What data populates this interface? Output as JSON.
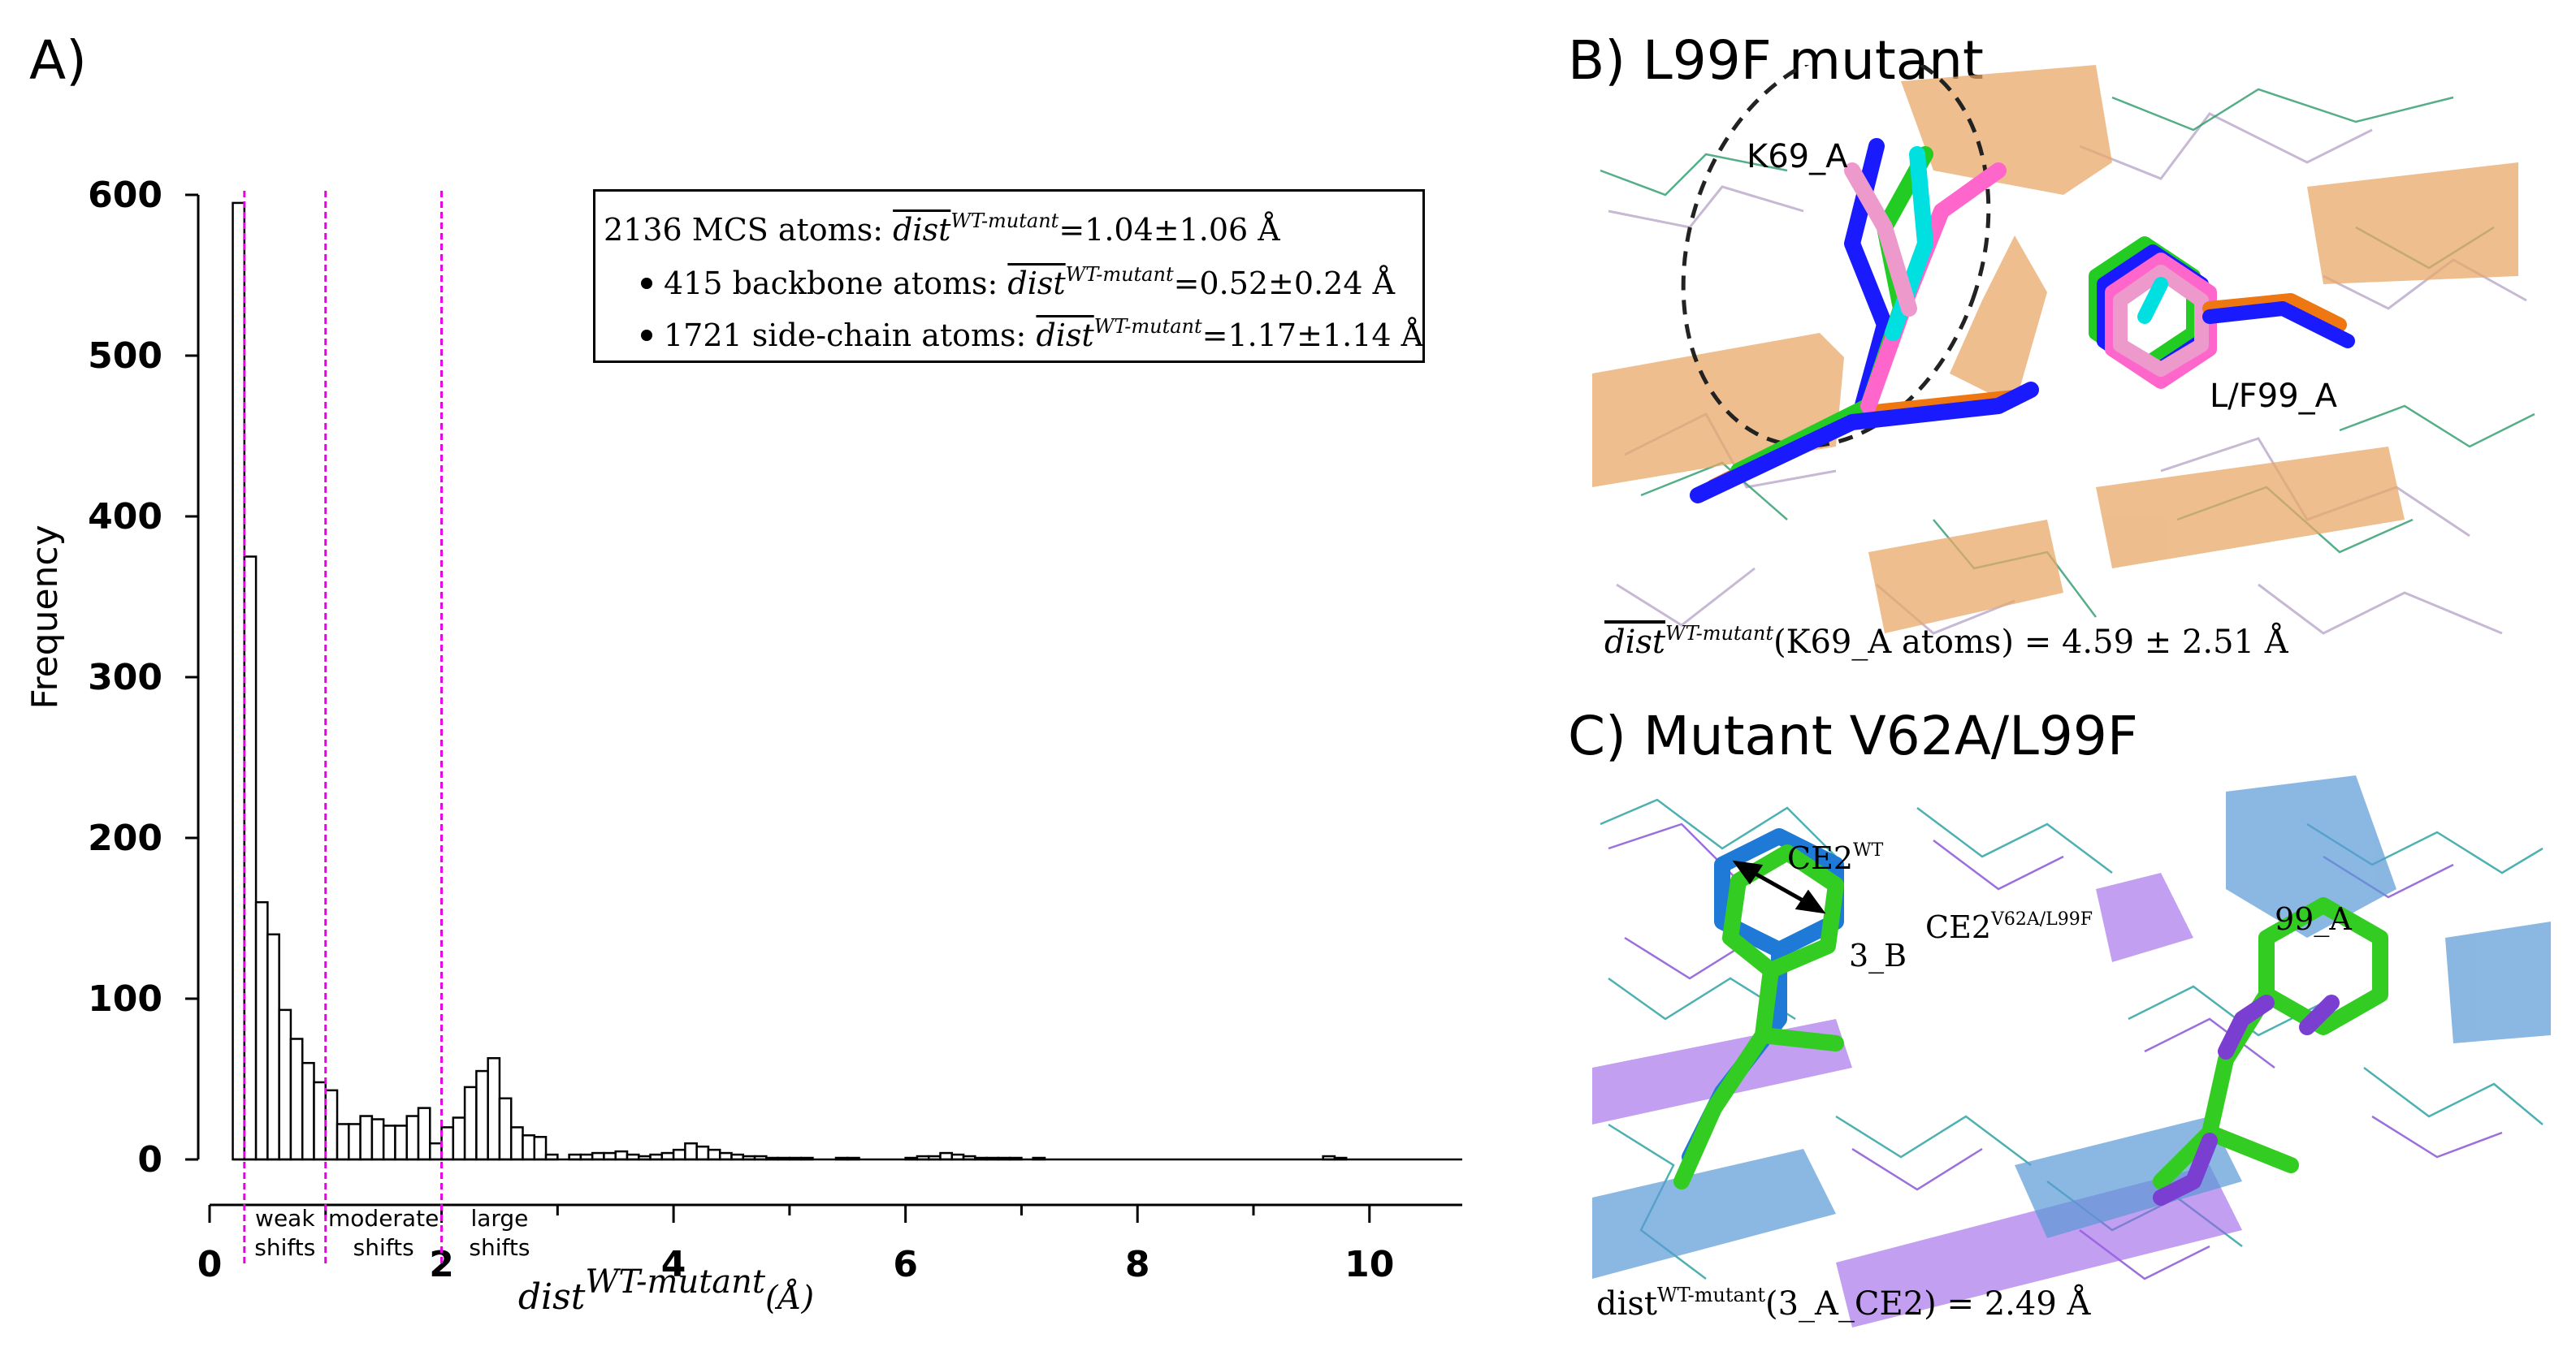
{
  "panels": {
    "a_label": "A)",
    "b_label": "B) L99F mutant",
    "c_label": "C) Mutant V62A/L99F"
  },
  "stats": {
    "line1": {
      "prefix": "2136 MCS atoms: ",
      "dist": "dist",
      "sup": "WT-mutant",
      "value": "=1.04±1.06 Å"
    },
    "line2": {
      "prefix": "415 backbone atoms: ",
      "dist": "dist",
      "sup": "WT-mutant",
      "value": "=0.52±0.24 Å"
    },
    "line3": {
      "prefix": "1721 side-chain atoms: ",
      "dist": "dist",
      "sup": "WT-mutant",
      "value": "=1.17±1.14 Å"
    }
  },
  "chart_data": {
    "type": "bar",
    "ylabel": "Frequency",
    "xlabel_main": "dist",
    "xlabel_sup": "WT-mutant",
    "xlabel_unit": "(Å)",
    "xlim": [
      0,
      10.8
    ],
    "ylim": [
      0,
      600
    ],
    "xticks": [
      0,
      2,
      4,
      6,
      8,
      10
    ],
    "yticks": [
      0,
      100,
      200,
      300,
      400,
      500,
      600
    ],
    "bin_width": 0.1,
    "bin_start": 0.2,
    "values": [
      595,
      375,
      160,
      140,
      93,
      75,
      60,
      48,
      43,
      22,
      22,
      27,
      25,
      21,
      21,
      27,
      32,
      10,
      20,
      26,
      45,
      55,
      63,
      38,
      20,
      15,
      14,
      3,
      0,
      3,
      3,
      4,
      4,
      5,
      3,
      2,
      3,
      4,
      6,
      10,
      8,
      6,
      4,
      3,
      2,
      2,
      1,
      1,
      1,
      1,
      0,
      0,
      1,
      1,
      0,
      0,
      0,
      0,
      1,
      2,
      2,
      4,
      3,
      2,
      1,
      1,
      1,
      1,
      0,
      1,
      0,
      0,
      0,
      0,
      0,
      0,
      0,
      0,
      0,
      0,
      0,
      0,
      0,
      0,
      0,
      0,
      0,
      0,
      0,
      0,
      0,
      0,
      0,
      0,
      2,
      1,
      0,
      0,
      0,
      0,
      0,
      0,
      0,
      0,
      0,
      0
    ],
    "thresholds": [
      0.3,
      1.0,
      2.0
    ],
    "regions": [
      {
        "line1": "weak",
        "line2": "shifts"
      },
      {
        "line1": "moderate",
        "line2": "shifts"
      },
      {
        "line1": "large",
        "line2": "shifts"
      }
    ],
    "threshold_color": "#e600e6"
  },
  "panel_b": {
    "residue1": "K69_A",
    "residue2": "L/F99_A",
    "caption_dist": "dist",
    "caption_sup": "WT-mutant",
    "caption_rest": "(K69_A atoms) = 4.59 ± 2.51 Å",
    "ribbon_color": "#e8a868",
    "stick_colors": [
      "#1a1aff",
      "#ff66cc",
      "#00e0e0",
      "#22cc22",
      "#ee7711",
      "#ee99cc"
    ]
  },
  "panel_c": {
    "label_ce2_wt": "CE2",
    "label_ce2_wt_sup": "WT",
    "label_ce2_mut": "CE2",
    "label_ce2_mut_sup": "V62A/L99F",
    "residue1": "3_B",
    "residue2": "99_A",
    "caption_dist": "dist",
    "caption_sup": "WT-mutant",
    "caption_rest": "(3_A_CE2) = 2.49 Å",
    "ribbon_color": "#5a9ad6",
    "stick_colors": [
      "#1e7ad6",
      "#33cc22",
      "#8a2be2"
    ]
  }
}
